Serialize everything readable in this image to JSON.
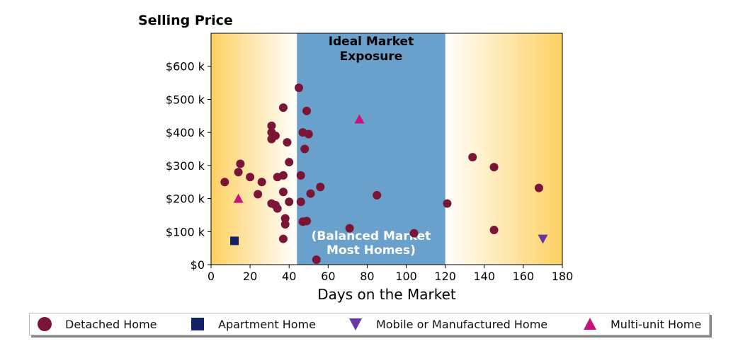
{
  "chart_data": {
    "type": "scatter",
    "title": "Selling Price",
    "xlabel": "Days on the Market",
    "ylabel": "",
    "xlim": [
      0,
      180
    ],
    "ylim": [
      0,
      700000
    ],
    "x_ticks": [
      0,
      20,
      40,
      60,
      80,
      100,
      120,
      140,
      160,
      180
    ],
    "y_ticks": [
      0,
      100000,
      200000,
      300000,
      400000,
      500000,
      600000
    ],
    "y_tick_labels": [
      "$0",
      "$100 k",
      "$200 k",
      "$300 k",
      "$400 k",
      "$500 k",
      "$600 k"
    ],
    "region": {
      "x_start": 44,
      "x_end": 120,
      "label_top": "Ideal Market\nExposure",
      "label_bottom": "(Balanced Market\nMost Homes)",
      "color": "#69a0cc",
      "edge_color": "#fed062"
    },
    "legend_position": "bottom",
    "series": [
      {
        "name": "Detached Home",
        "marker": "circle",
        "color": "#7b1535",
        "points": [
          [
            7,
            250000
          ],
          [
            14,
            280000
          ],
          [
            15,
            305000
          ],
          [
            20,
            265000
          ],
          [
            24,
            213000
          ],
          [
            26,
            250000
          ],
          [
            31,
            420000
          ],
          [
            31,
            400000
          ],
          [
            31,
            380000
          ],
          [
            33,
            390000
          ],
          [
            34,
            265000
          ],
          [
            31,
            185000
          ],
          [
            33,
            180000
          ],
          [
            34,
            170000
          ],
          [
            37,
            475000
          ],
          [
            37,
            270000
          ],
          [
            37,
            220000
          ],
          [
            38,
            140000
          ],
          [
            38,
            122000
          ],
          [
            37,
            78000
          ],
          [
            39,
            370000
          ],
          [
            40,
            310000
          ],
          [
            40,
            190000
          ],
          [
            45,
            535000
          ],
          [
            46,
            270000
          ],
          [
            46,
            190000
          ],
          [
            47,
            400000
          ],
          [
            48,
            350000
          ],
          [
            49,
            465000
          ],
          [
            50,
            395000
          ],
          [
            51,
            215000
          ],
          [
            47,
            130000
          ],
          [
            49,
            132000
          ],
          [
            54,
            15000
          ],
          [
            56,
            235000
          ],
          [
            71,
            110000
          ],
          [
            85,
            210000
          ],
          [
            104,
            95000
          ],
          [
            121,
            185000
          ],
          [
            134,
            325000
          ],
          [
            145,
            295000
          ],
          [
            145,
            105000
          ],
          [
            168,
            232000
          ]
        ]
      },
      {
        "name": "Apartment Home",
        "marker": "square",
        "color": "#14206a",
        "points": [
          [
            12,
            72000
          ]
        ]
      },
      {
        "name": "Mobile or Manufactured Home",
        "marker": "triangle-down",
        "color": "#6a35a8",
        "points": [
          [
            170,
            78000
          ]
        ]
      },
      {
        "name": "Multi-unit Home",
        "marker": "triangle-up",
        "color": "#c8107e",
        "points": [
          [
            14,
            200000
          ],
          [
            76,
            440000
          ]
        ]
      }
    ]
  }
}
